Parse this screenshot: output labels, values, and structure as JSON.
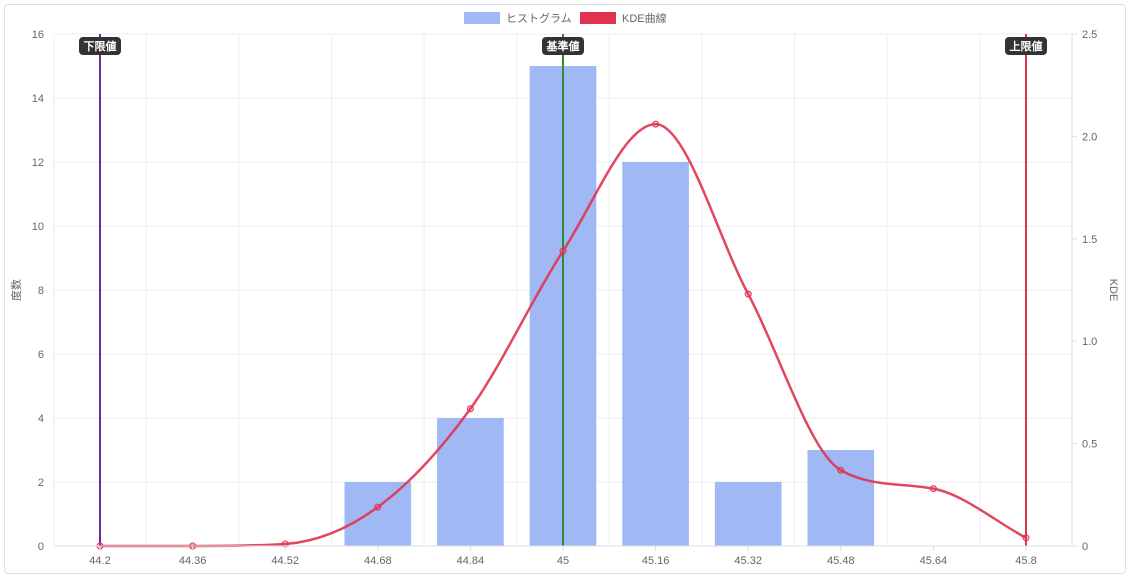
{
  "chart_data": {
    "type": "bar",
    "categories": [
      "44.2",
      "44.36",
      "44.52",
      "44.68",
      "44.84",
      "45",
      "45.16",
      "45.32",
      "45.48",
      "45.64",
      "45.8"
    ],
    "series": [
      {
        "name": "ヒストグラム",
        "type": "bar",
        "axis": "left",
        "color": "#a0b9f5",
        "values": [
          0,
          0,
          0,
          2,
          4,
          15,
          12,
          2,
          3,
          0,
          0
        ]
      },
      {
        "name": "KDE曲線",
        "type": "line",
        "axis": "right",
        "color": "#e0334f",
        "values": [
          0.0,
          0.0,
          0.01,
          0.19,
          0.67,
          1.44,
          2.06,
          1.23,
          0.37,
          0.28,
          0.04
        ]
      }
    ],
    "reference_lines": [
      {
        "label": "下限値",
        "category": "44.2",
        "color": "#6a2aa8"
      },
      {
        "label": "基準値",
        "category": "45",
        "color": "#2e8b3a"
      },
      {
        "label": "上限値",
        "category": "45.8",
        "color": "#e0334f"
      }
    ],
    "ylabel": "度数",
    "y2label": "KDE",
    "ylim": [
      0,
      16
    ],
    "y2lim": [
      0,
      2.5
    ],
    "yticks": [
      0,
      2,
      4,
      6,
      8,
      10,
      12,
      14,
      16
    ],
    "y2ticks": [
      "0",
      "0.5",
      "1.0",
      "1.5",
      "2.0",
      "2.5"
    ],
    "grid": true,
    "legend_position": "top"
  }
}
